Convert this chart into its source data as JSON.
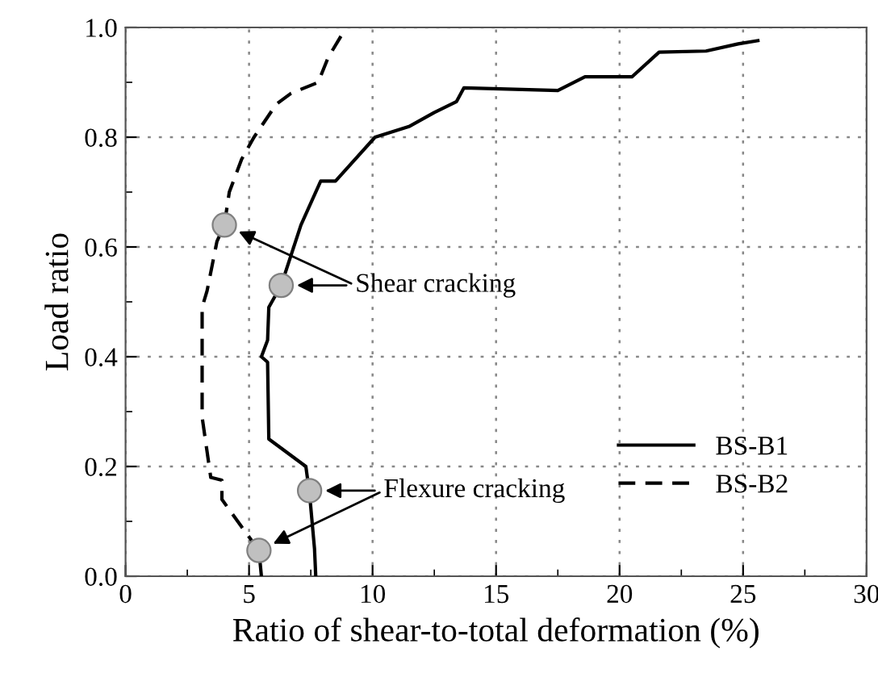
{
  "chart_data": {
    "type": "line",
    "xlabel": "Ratio of shear-to-total deformation (%)",
    "ylabel": "Load ratio",
    "series": [
      {
        "name": "BS-B1",
        "color": "#000000",
        "line_style": "solid",
        "marker": "none",
        "x": [
          7.7,
          7.65,
          7.45,
          7.3,
          5.8,
          5.75,
          5.5,
          5.75,
          5.8,
          6.3,
          7.1,
          7.9,
          8.5,
          10.1,
          11.5,
          12.5,
          13.4,
          13.7,
          17.5,
          18.6,
          20.5,
          21.6,
          23.5,
          24.8,
          25.6
        ],
        "values": [
          0.0,
          0.05,
          0.15,
          0.2,
          0.25,
          0.39,
          0.4,
          0.43,
          0.49,
          0.53,
          0.64,
          0.72,
          0.72,
          0.8,
          0.82,
          0.845,
          0.865,
          0.89,
          0.885,
          0.91,
          0.91,
          0.955,
          0.957,
          0.97,
          0.976
        ]
      },
      {
        "name": "BS-B2",
        "color": "#000000",
        "line_style": "dashed",
        "marker": "none",
        "x": [
          5.5,
          5.4,
          4.7,
          3.9,
          3.9,
          3.45,
          3.1,
          3.1,
          3.3,
          3.7,
          4.0,
          4.2,
          4.7,
          5.2,
          6.1,
          6.7,
          7.8,
          8.2,
          8.8
        ],
        "values": [
          0.0,
          0.047,
          0.09,
          0.14,
          0.175,
          0.18,
          0.29,
          0.49,
          0.52,
          0.61,
          0.64,
          0.7,
          0.76,
          0.8,
          0.86,
          0.88,
          0.9,
          0.945,
          0.99
        ]
      },
      {
        "type": "scatter",
        "color": "#c0c0c0",
        "marker": "circle",
        "x": [
          4.0,
          6.3
        ],
        "values": [
          0.64,
          0.53
        ]
      },
      {
        "type": "scatter",
        "color": "#c0c0c0",
        "marker": "circle",
        "x": [
          5.4,
          7.45
        ],
        "values": [
          0.047,
          0.156
        ]
      }
    ],
    "annotations": [
      {
        "text": "Shear cracking",
        "x": 6.3,
        "y": 0.53
      },
      {
        "text": "Flexure cracking",
        "x": 7.45,
        "y": 0.156
      }
    ],
    "xlim": [
      0,
      30
    ],
    "xticks": [
      0,
      5,
      10,
      15,
      20,
      25,
      30
    ],
    "ylim": [
      0,
      1
    ],
    "yticks": [
      {
        "value": 0,
        "label": "0.0"
      },
      0.2,
      0.4,
      0.6,
      0.8,
      {
        "value": 1,
        "label": "1.0"
      }
    ],
    "grid": true,
    "legend": "lower right"
  }
}
